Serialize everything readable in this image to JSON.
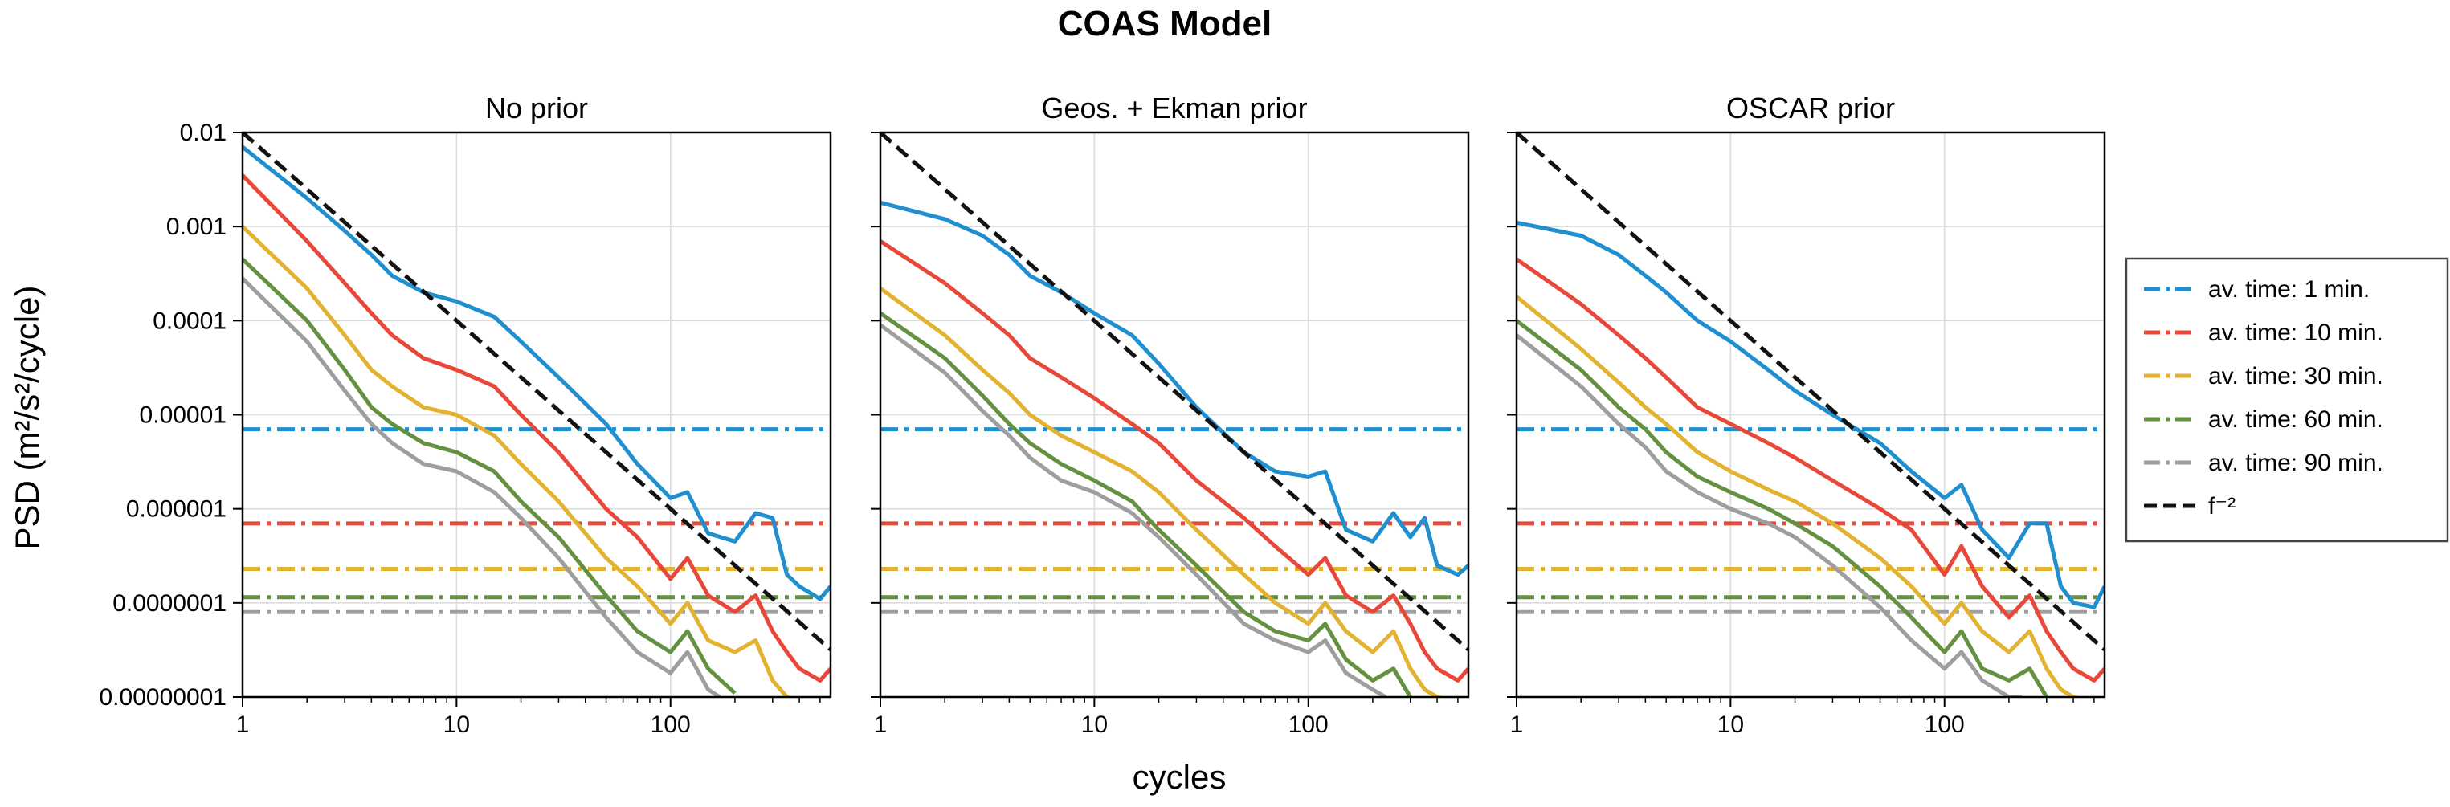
{
  "suptitle": "COAS Model",
  "chart_data": {
    "type": "line",
    "xlabel": "cycles",
    "ylabel": "PSD (m²/s²/cycle)",
    "xscale": "log",
    "yscale": "log",
    "xlim": [
      1,
      560
    ],
    "ylim": [
      1e-08,
      0.01
    ],
    "xticks": [
      1,
      10,
      100
    ],
    "xtick_labels": [
      "1",
      "10",
      "100"
    ],
    "yticks": [
      0.01,
      0.001,
      0.0001,
      1e-05,
      1e-06,
      1e-07,
      1e-08
    ],
    "ytick_labels": [
      "0.01",
      "0.001",
      "0.0001",
      "0.00001",
      "0.000001",
      "0.0000001",
      "0.00000001"
    ],
    "grid": true,
    "legend_position": "right",
    "series_styles": [
      {
        "name": "av. time: 1 min.",
        "color": "#1f8fd0"
      },
      {
        "name": "av. time: 10 min.",
        "color": "#e8483a"
      },
      {
        "name": "av. time: 30 min.",
        "color": "#e3b230"
      },
      {
        "name": "av. time: 60 min.",
        "color": "#63913f"
      },
      {
        "name": "av. time: 90 min.",
        "color": "#9e9e9e"
      },
      {
        "name": "f⁻²",
        "color": "#111111"
      }
    ],
    "legend": [
      {
        "label": "av. time: 1 min.",
        "color": "#1f8fd0",
        "style": "dashdot"
      },
      {
        "label": "av. time: 10 min.",
        "color": "#e8483a",
        "style": "dashdot"
      },
      {
        "label": "av. time: 30 min.",
        "color": "#e3b230",
        "style": "dashdot"
      },
      {
        "label": "av. time: 60 min.",
        "color": "#63913f",
        "style": "dashdot"
      },
      {
        "label": "av. time: 90 min.",
        "color": "#9e9e9e",
        "style": "dashdot"
      },
      {
        "label": "f⁻²",
        "color": "#111111",
        "style": "dashed"
      }
    ],
    "noise_floors": [
      7e-06,
      7e-07,
      2.3e-07,
      1.15e-07,
      8e-08
    ],
    "reference_line": {
      "label": "f⁻²",
      "x": [
        1,
        560
      ],
      "y": [
        0.01,
        3.19e-08
      ]
    },
    "panels": [
      {
        "title": "No prior",
        "series": [
          {
            "name": "av. time: 1 min.",
            "x": [
              1,
              2,
              3,
              4,
              5,
              7,
              10,
              15,
              20,
              30,
              50,
              70,
              100,
              120,
              150,
              200,
              250,
              300,
              350,
              400,
              500,
              560
            ],
            "y": [
              0.007,
              0.002,
              0.0009,
              0.0005,
              0.0003,
              0.0002,
              0.00016,
              0.00011,
              6e-05,
              2.5e-05,
              8e-06,
              3e-06,
              1.3e-06,
              1.5e-06,
              5.5e-07,
              4.5e-07,
              9e-07,
              8e-07,
              2e-07,
              1.5e-07,
              1.1e-07,
              1.5e-07
            ]
          },
          {
            "name": "av. time: 10 min.",
            "x": [
              1,
              2,
              3,
              4,
              5,
              7,
              10,
              15,
              20,
              30,
              50,
              70,
              100,
              120,
              150,
              200,
              250,
              300,
              350,
              400,
              500,
              560
            ],
            "y": [
              0.0035,
              0.0007,
              0.00025,
              0.00012,
              7e-05,
              4e-05,
              3e-05,
              2e-05,
              1e-05,
              4e-06,
              1e-06,
              5e-07,
              1.8e-07,
              3e-07,
              1.2e-07,
              8e-08,
              1.2e-07,
              5e-08,
              3e-08,
              2e-08,
              1.5e-08,
              2e-08
            ]
          },
          {
            "name": "av. time: 30 min.",
            "x": [
              1,
              2,
              3,
              4,
              5,
              7,
              10,
              15,
              20,
              30,
              50,
              70,
              100,
              120,
              150,
              200,
              250,
              300,
              350,
              400,
              500,
              560
            ],
            "y": [
              0.001,
              0.00022,
              7e-05,
              3e-05,
              2e-05,
              1.2e-05,
              1e-05,
              6e-06,
              3e-06,
              1.2e-06,
              3e-07,
              1.5e-07,
              6e-08,
              1e-07,
              4e-08,
              3e-08,
              4e-08,
              1.5e-08,
              1e-08,
              9e-09,
              8e-09,
              9e-09
            ]
          },
          {
            "name": "av. time: 60 min.",
            "x": [
              1,
              2,
              3,
              4,
              5,
              7,
              10,
              15,
              20,
              30,
              50,
              70,
              100,
              120,
              150,
              200
            ],
            "y": [
              0.00045,
              0.0001,
              3e-05,
              1.2e-05,
              8e-06,
              5e-06,
              4e-06,
              2.5e-06,
              1.2e-06,
              5e-07,
              1.2e-07,
              5e-08,
              3e-08,
              5e-08,
              2e-08,
              1.1e-08
            ]
          },
          {
            "name": "av. time: 90 min.",
            "x": [
              1,
              2,
              3,
              4,
              5,
              7,
              10,
              15,
              20,
              30,
              50,
              70,
              100,
              120,
              150,
              170
            ],
            "y": [
              0.00028,
              6e-05,
              1.8e-05,
              8e-06,
              5e-06,
              3e-06,
              2.5e-06,
              1.5e-06,
              8e-07,
              3e-07,
              7e-08,
              3e-08,
              1.8e-08,
              3e-08,
              1.2e-08,
              1e-08
            ]
          }
        ]
      },
      {
        "title": "Geos. + Ekman prior",
        "series": [
          {
            "name": "av. time: 1 min.",
            "x": [
              1,
              2,
              3,
              4,
              5,
              7,
              10,
              15,
              20,
              30,
              50,
              70,
              100,
              120,
              150,
              200,
              250,
              300,
              350,
              400,
              500,
              560
            ],
            "y": [
              0.0018,
              0.0012,
              0.0008,
              0.0005,
              0.0003,
              0.0002,
              0.00012,
              7e-05,
              3.5e-05,
              1.2e-05,
              4e-06,
              2.5e-06,
              2.2e-06,
              2.5e-06,
              6e-07,
              4.5e-07,
              9e-07,
              5e-07,
              8e-07,
              2.5e-07,
              2e-07,
              2.5e-07
            ]
          },
          {
            "name": "av. time: 10 min.",
            "x": [
              1,
              2,
              3,
              4,
              5,
              7,
              10,
              15,
              20,
              30,
              50,
              70,
              100,
              120,
              150,
              200,
              250,
              300,
              350,
              400,
              500,
              560
            ],
            "y": [
              0.0007,
              0.00025,
              0.00012,
              7e-05,
              4e-05,
              2.5e-05,
              1.5e-05,
              8e-06,
              5e-06,
              2e-06,
              8e-07,
              4e-07,
              2e-07,
              3e-07,
              1.2e-07,
              8e-08,
              1.2e-07,
              6e-08,
              3e-08,
              2e-08,
              1.5e-08,
              2e-08
            ]
          },
          {
            "name": "av. time: 30 min.",
            "x": [
              1,
              2,
              3,
              4,
              5,
              7,
              10,
              15,
              20,
              30,
              50,
              70,
              100,
              120,
              150,
              200,
              250,
              300,
              350,
              400,
              500,
              560
            ],
            "y": [
              0.00022,
              7e-05,
              3e-05,
              1.7e-05,
              1e-05,
              6e-06,
              4e-06,
              2.5e-06,
              1.5e-06,
              6e-07,
              2e-07,
              1e-07,
              6e-08,
              1e-07,
              5e-08,
              3e-08,
              5e-08,
              2e-08,
              1.2e-08,
              1e-08,
              9e-09,
              9e-09
            ]
          },
          {
            "name": "av. time: 60 min.",
            "x": [
              1,
              2,
              3,
              4,
              5,
              7,
              10,
              15,
              20,
              30,
              50,
              70,
              100,
              120,
              150,
              200,
              250,
              300
            ],
            "y": [
              0.00012,
              4e-05,
              1.6e-05,
              8e-06,
              5e-06,
              3e-06,
              2e-06,
              1.2e-06,
              6e-07,
              2.5e-07,
              8e-08,
              5e-08,
              4e-08,
              6e-08,
              2.5e-08,
              1.5e-08,
              2e-08,
              1e-08
            ]
          },
          {
            "name": "av. time: 90 min.",
            "x": [
              1,
              2,
              3,
              4,
              5,
              7,
              10,
              15,
              20,
              30,
              50,
              70,
              100,
              120,
              150,
              200,
              230
            ],
            "y": [
              9e-05,
              2.8e-05,
              1.1e-05,
              6e-06,
              3.5e-06,
              2e-06,
              1.5e-06,
              9e-07,
              5e-07,
              2e-07,
              6e-08,
              4e-08,
              3e-08,
              4e-08,
              1.8e-08,
              1.2e-08,
              1e-08
            ]
          }
        ]
      },
      {
        "title": "OSCAR prior",
        "series": [
          {
            "name": "av. time: 1 min.",
            "x": [
              1,
              2,
              3,
              4,
              5,
              7,
              10,
              15,
              20,
              30,
              50,
              70,
              100,
              120,
              150,
              200,
              250,
              300,
              350,
              400,
              500,
              560
            ],
            "y": [
              0.0011,
              0.0008,
              0.0005,
              0.0003,
              0.0002,
              0.0001,
              6e-05,
              3e-05,
              1.8e-05,
              1e-05,
              5e-06,
              2.5e-06,
              1.3e-06,
              1.8e-06,
              6e-07,
              3e-07,
              7e-07,
              7e-07,
              1.5e-07,
              1e-07,
              9e-08,
              1.5e-07
            ]
          },
          {
            "name": "av. time: 10 min.",
            "x": [
              1,
              2,
              3,
              4,
              5,
              7,
              10,
              15,
              20,
              30,
              50,
              70,
              100,
              120,
              150,
              200,
              250,
              300,
              350,
              400,
              500,
              560
            ],
            "y": [
              0.00045,
              0.00015,
              7e-05,
              4e-05,
              2.5e-05,
              1.2e-05,
              8e-06,
              5e-06,
              3.5e-06,
              2e-06,
              1e-06,
              6e-07,
              2e-07,
              4e-07,
              1.5e-07,
              7e-08,
              1.2e-07,
              5e-08,
              3e-08,
              2e-08,
              1.5e-08,
              2e-08
            ]
          },
          {
            "name": "av. time: 30 min.",
            "x": [
              1,
              2,
              3,
              4,
              5,
              7,
              10,
              15,
              20,
              30,
              50,
              70,
              100,
              120,
              150,
              200,
              250,
              300,
              350,
              400,
              500,
              560
            ],
            "y": [
              0.00018,
              5e-05,
              2.2e-05,
              1.2e-05,
              8e-06,
              4e-06,
              2.5e-06,
              1.6e-06,
              1.2e-06,
              7e-07,
              3e-07,
              1.5e-07,
              6e-08,
              1e-07,
              5e-08,
              3e-08,
              5e-08,
              2e-08,
              1.2e-08,
              1e-08,
              9e-09,
              9e-09
            ]
          },
          {
            "name": "av. time: 60 min.",
            "x": [
              1,
              2,
              3,
              4,
              5,
              7,
              10,
              15,
              20,
              30,
              50,
              70,
              100,
              120,
              150,
              200,
              250,
              300
            ],
            "y": [
              0.0001,
              3e-05,
              1.2e-05,
              7e-06,
              4e-06,
              2.2e-06,
              1.5e-06,
              1e-06,
              7e-07,
              4e-07,
              1.5e-07,
              7e-08,
              3e-08,
              5e-08,
              2e-08,
              1.5e-08,
              2e-08,
              1e-08
            ]
          },
          {
            "name": "av. time: 90 min.",
            "x": [
              1,
              2,
              3,
              4,
              5,
              7,
              10,
              15,
              20,
              30,
              50,
              70,
              100,
              120,
              150,
              200,
              230
            ],
            "y": [
              7e-05,
              2e-05,
              8e-06,
              4.5e-06,
              2.5e-06,
              1.5e-06,
              1e-06,
              7e-07,
              5e-07,
              2.5e-07,
              9e-08,
              4e-08,
              2e-08,
              3e-08,
              1.5e-08,
              1e-08,
              1e-08
            ]
          }
        ]
      }
    ]
  }
}
